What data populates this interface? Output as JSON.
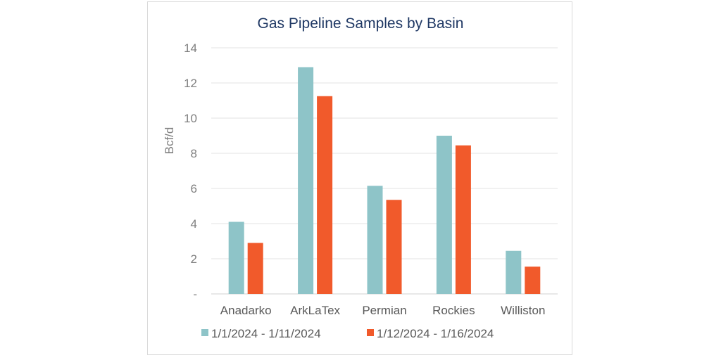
{
  "chart_data": {
    "type": "bar",
    "title": "Gas Pipeline Samples by Basin",
    "ylabel": "Bcf/d",
    "xlabel": "",
    "categories": [
      "Anadarko",
      "ArkLaTex",
      "Permian",
      "Rockies",
      "Williston"
    ],
    "series": [
      {
        "name": "1/1/2024 - 1/11/2024",
        "color": "#8ec4c8",
        "values": [
          4.1,
          12.9,
          6.15,
          9.0,
          2.45
        ]
      },
      {
        "name": "1/12/2024 - 1/16/2024",
        "color": "#f15a2b",
        "values": [
          2.9,
          11.25,
          5.35,
          8.45,
          1.55
        ]
      }
    ],
    "ylim": [
      0,
      14
    ],
    "yticks": [
      0,
      2,
      4,
      6,
      8,
      10,
      12,
      14
    ],
    "ytick_labels": [
      "-",
      "2",
      "4",
      "6",
      "8",
      "10",
      "12",
      "14"
    ],
    "grid": true,
    "legend_position": "bottom"
  }
}
